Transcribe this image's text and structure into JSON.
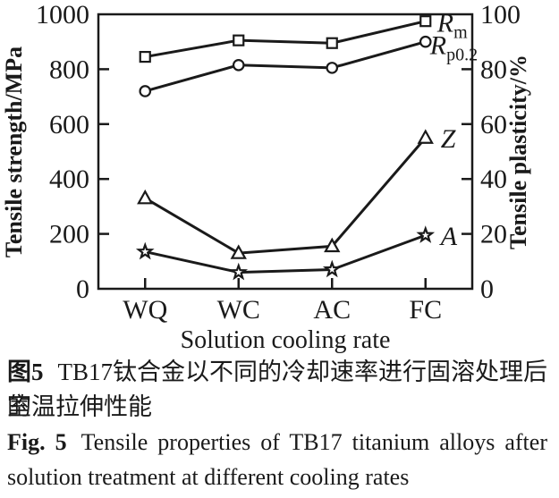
{
  "chart_data": {
    "type": "line",
    "title": "",
    "categories": [
      "WQ",
      "WC",
      "AC",
      "FC"
    ],
    "xlabel": "Solution cooling rate",
    "ylabel_left": "Tensile strength/MPa",
    "ylabel_right": "Tensile plasticity/%",
    "ylim_left": [
      0,
      1000
    ],
    "ylim_right": [
      0,
      100
    ],
    "yticks_left": [
      0,
      200,
      400,
      600,
      800,
      1000
    ],
    "yticks_right": [
      0,
      20,
      40,
      60,
      80,
      100
    ],
    "grid": false,
    "legend_position": "inline-right-of-last-point",
    "line_color": "#1a1a1a",
    "marker_fill": "#ffffff",
    "background": "#ffffff",
    "series": [
      {
        "name": "Rm",
        "label_main": "R",
        "label_sub": "m",
        "axis": "left",
        "marker": "square",
        "values": [
          845,
          905,
          895,
          975
        ]
      },
      {
        "name": "Rp0.2",
        "label_main": "R",
        "label_sub": "p0.2",
        "axis": "left",
        "marker": "circle",
        "values": [
          720,
          815,
          805,
          900
        ]
      },
      {
        "name": "Z",
        "label_main": "Z",
        "label_sub": "",
        "axis": "right",
        "marker": "triangle",
        "values": [
          33,
          13,
          15.5,
          55
        ]
      },
      {
        "name": "A",
        "label_main": "A",
        "label_sub": "",
        "axis": "right",
        "marker": "star",
        "values": [
          13.5,
          6,
          7,
          19.5
        ]
      }
    ]
  },
  "caption": {
    "zh": {
      "fig_label": "图5",
      "line1": "TB17钛合金以不同的冷却速率进行固溶处理后的",
      "line2": "室温拉伸性能"
    },
    "en": {
      "fig_label": "Fig. 5",
      "line1": "Tensile properties of TB17 titanium alloys after",
      "line2": "solution treatment at different cooling rates"
    }
  }
}
